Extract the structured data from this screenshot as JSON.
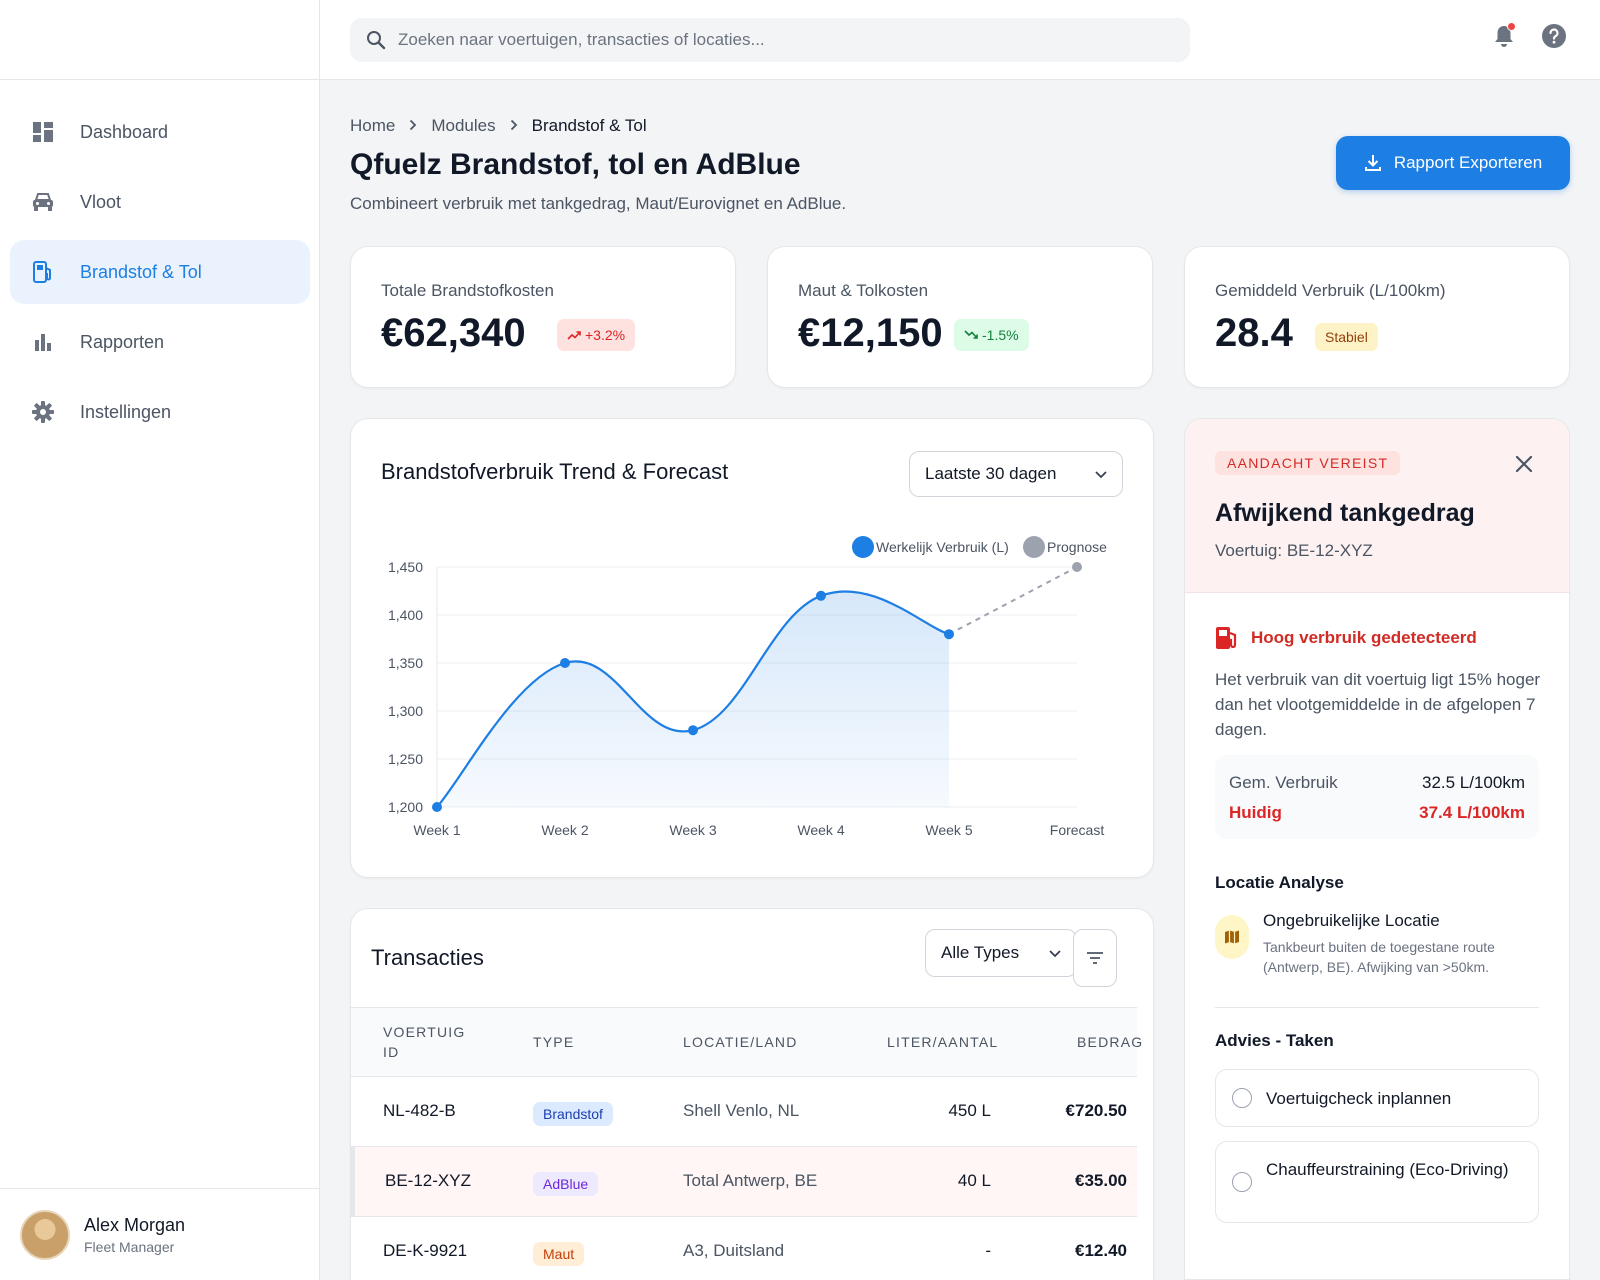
{
  "search": {
    "placeholder": "Zoeken naar voertuigen, transacties of locaties..."
  },
  "sidebar": {
    "items": [
      {
        "label": "Dashboard",
        "icon": "dashboard-icon"
      },
      {
        "label": "Vloot",
        "icon": "car-icon"
      },
      {
        "label": "Brandstof & Tol",
        "icon": "fuel-icon",
        "active": true
      },
      {
        "label": "Rapporten",
        "icon": "bar-chart-icon"
      },
      {
        "label": "Instellingen",
        "icon": "gear-icon"
      }
    ],
    "user": {
      "name": "Alex Morgan",
      "role": "Fleet Manager"
    }
  },
  "breadcrumb": [
    "Home",
    "Modules",
    "Brandstof & Tol"
  ],
  "page": {
    "title": "Qfuelz Brandstof, tol en AdBlue",
    "subtitle": "Combineert verbruik met tankgedrag, Maut/Eurovignet en AdBlue.",
    "export_label": "Rapport Exporteren"
  },
  "kpis": [
    {
      "label": "Totale Brandstofkosten",
      "value": "€62,340",
      "badge": "+3.2%",
      "badge_color": "#dc2626",
      "badge_bg": "#fde2e0"
    },
    {
      "label": "Maut & Tolkosten",
      "value": "€12,150",
      "badge": "-1.5%",
      "badge_color": "#15803d",
      "badge_bg": "#dcfce7"
    },
    {
      "label": "Gemiddeld Verbruik (L/100km)",
      "value": "28.4",
      "badge": "Stabiel",
      "badge_color": "#92400e",
      "badge_bg": "#fef3c7"
    }
  ],
  "chart": {
    "title": "Brandstofverbruik Trend & Forecast",
    "range_label": "Laatste 30 dagen"
  },
  "chart_data": {
    "type": "line",
    "categories": [
      "Week 1",
      "Week 2",
      "Week 3",
      "Week 4",
      "Week 5",
      "Forecast"
    ],
    "series": [
      {
        "name": "Werkelijk Verbruik (L)",
        "color": "#1d7ee3",
        "values": [
          1200,
          1350,
          1280,
          1420,
          1380,
          null
        ]
      },
      {
        "name": "Prognose",
        "color": "#9ca3af",
        "values": [
          null,
          null,
          null,
          null,
          1380,
          1450
        ]
      }
    ],
    "ylim": [
      1200,
      1450
    ],
    "yticks": [
      "1,200",
      "1,250",
      "1,300",
      "1,350",
      "1,400",
      "1,450"
    ],
    "grid": true,
    "legend": "top-right"
  },
  "transactions": {
    "title": "Transacties",
    "filter_label": "Alle Types",
    "columns": [
      "VOERTUIG ID",
      "TYPE",
      "LOCATIE/LAND",
      "LITER/AANTAL",
      "BEDRAG"
    ],
    "rows": [
      {
        "vehicle": "NL-482-B",
        "type": "Brandstof",
        "type_color": "#1e40af",
        "type_bg": "#dbeafe",
        "location": "Shell Venlo, NL",
        "amount": "450 L",
        "cost": "€720.50"
      },
      {
        "vehicle": "BE-12-XYZ",
        "type": "AdBlue",
        "type_color": "#6d28d9",
        "type_bg": "#ede9fe",
        "location": "Total Antwerp, BE",
        "amount": "40 L",
        "cost": "€35.00"
      },
      {
        "vehicle": "DE-K-9921",
        "type": "Maut",
        "type_color": "#c2410c",
        "type_bg": "#ffedd5",
        "location": "A3, Duitsland",
        "amount": "-",
        "cost": "€12.40"
      }
    ]
  },
  "alert": {
    "tag": "AANDACHT VEREIST",
    "title": "Afwijkend tankgedrag",
    "vehicle": "Voertuig: BE-12-XYZ",
    "detection": "Hoog verbruik gedetecteerd",
    "description": "Het verbruik van dit voertuig ligt 15% hoger dan het vlootgemiddelde in de afgelopen 7 dagen.",
    "avg_label": "Gem. Verbruik",
    "avg_value": "32.5 L/100km",
    "current_label": "Huidig",
    "current_value": "37.4 L/100km",
    "location_section": "Locatie Analyse",
    "location_title": "Ongebruikelijke Locatie",
    "location_desc": "Tankbeurt buiten de toegestane route (Antwerp, BE). Afwijking van >50km.",
    "tasks_section": "Advies - Taken",
    "tasks": [
      "Voertuigcheck inplannen",
      "Chauffeurstraining (Eco-Driving)"
    ]
  }
}
